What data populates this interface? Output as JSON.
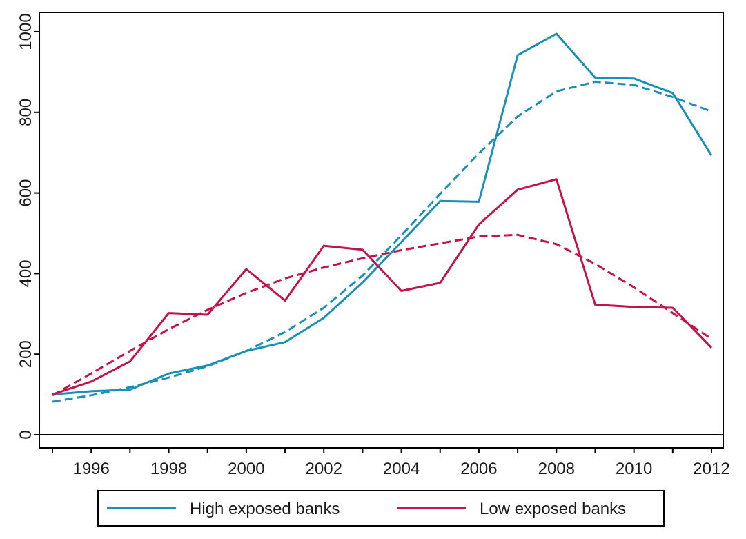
{
  "chart_data": {
    "type": "line",
    "title": "",
    "xlabel": "",
    "ylabel": "",
    "xlim": [
      1995,
      2012
    ],
    "ylim": [
      0,
      1000
    ],
    "x": [
      1995,
      1996,
      1997,
      1998,
      1999,
      2000,
      2001,
      2002,
      2003,
      2004,
      2005,
      2006,
      2007,
      2008,
      2009,
      2010,
      2011,
      2012
    ],
    "x_ticks": [
      1996,
      1998,
      2000,
      2002,
      2004,
      2006,
      2008,
      2010,
      2012
    ],
    "y_ticks": [
      0,
      200,
      400,
      600,
      800,
      1000
    ],
    "grid": false,
    "zero_line": true,
    "legend_position": "bottom",
    "series": [
      {
        "name": "High exposed banks",
        "color": "#1b8fb6",
        "style": "solid",
        "values": [
          100,
          108,
          112,
          152,
          172,
          208,
          230,
          290,
          378,
          478,
          580,
          578,
          942,
          995,
          886,
          884,
          848,
          693
        ]
      },
      {
        "name": "Low exposed banks",
        "color": "#c0144a",
        "style": "solid",
        "values": [
          100,
          132,
          182,
          302,
          298,
          411,
          333,
          469,
          459,
          357,
          377,
          522,
          608,
          634,
          323,
          317,
          315,
          216
        ]
      },
      {
        "color": "#1b8fb6",
        "style": "dashed",
        "values": [
          82,
          98,
          118,
          142,
          170,
          208,
          255,
          315,
          395,
          495,
          598,
          698,
          790,
          852,
          876,
          868,
          838,
          802
        ]
      },
      {
        "color": "#c0144a",
        "style": "dashed",
        "values": [
          98,
          152,
          208,
          262,
          310,
          352,
          388,
          415,
          438,
          458,
          475,
          492,
          496,
          473,
          424,
          366,
          302,
          238
        ]
      }
    ]
  }
}
